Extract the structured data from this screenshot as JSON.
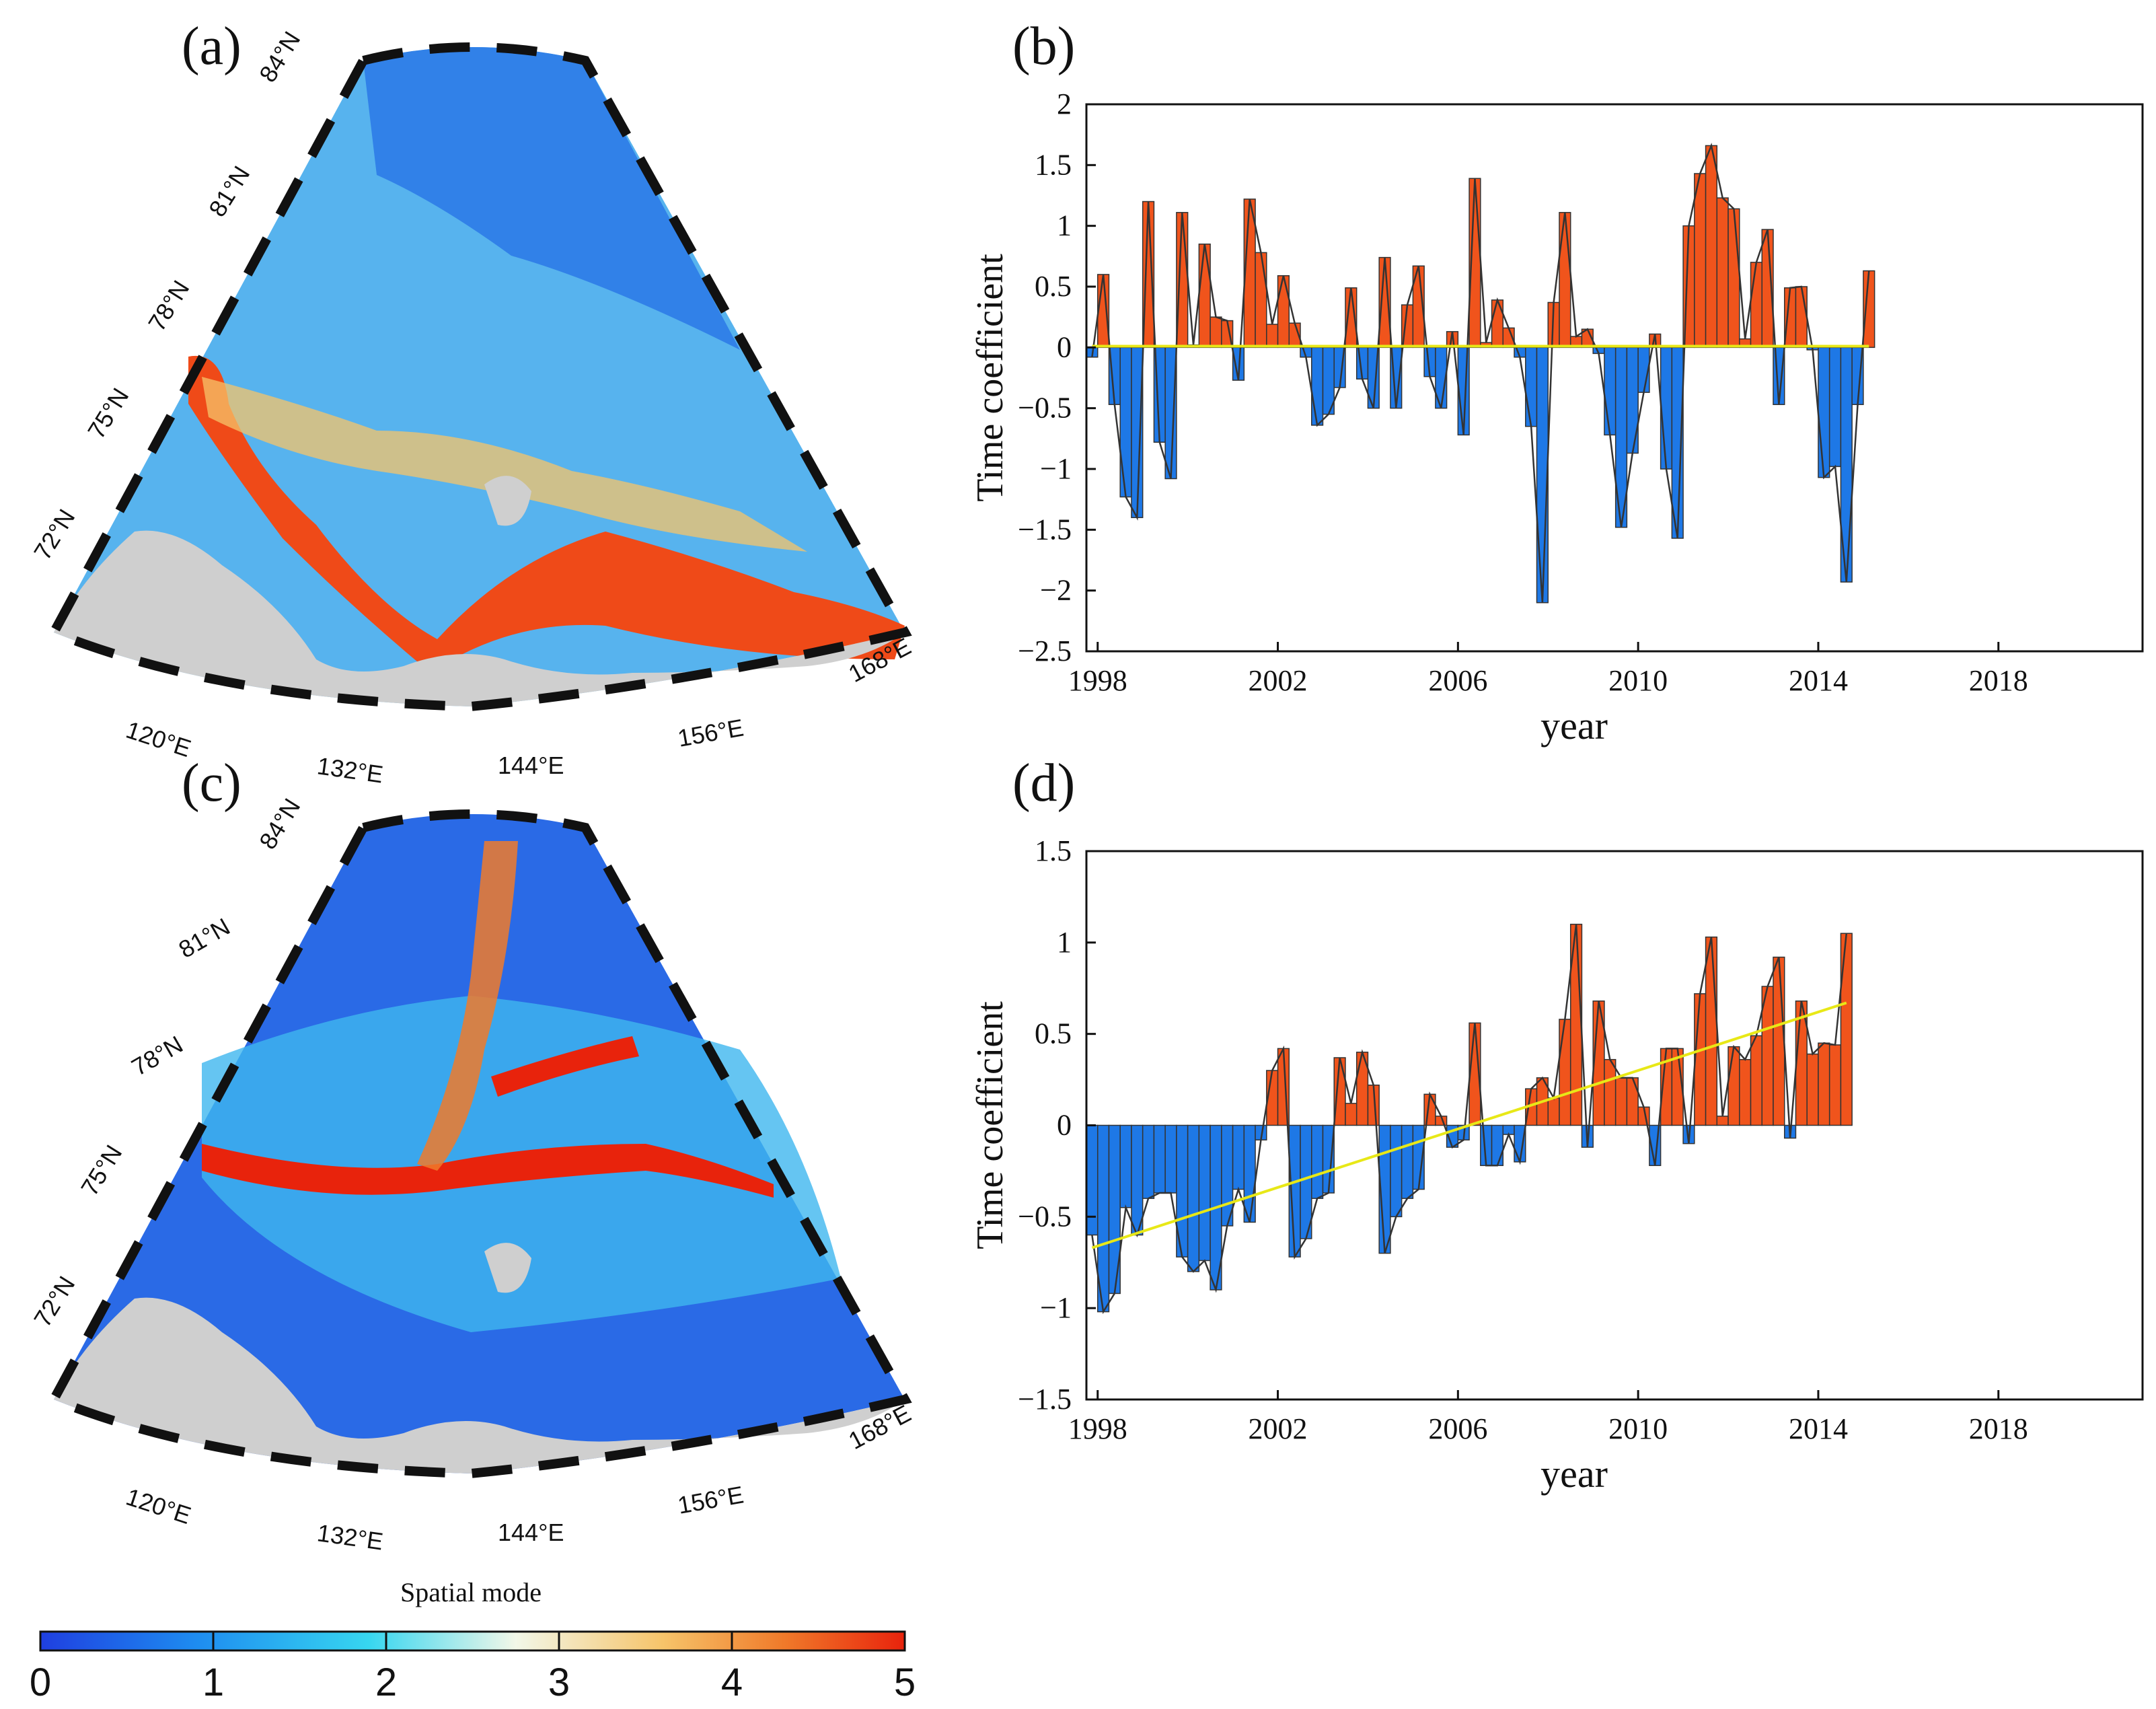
{
  "figure": {
    "panel_labels": [
      "(a)",
      "(b)",
      "(c)",
      "(d)"
    ],
    "colorbar": {
      "title": "Spatial mode",
      "ticks": [
        "0",
        "1",
        "2",
        "3",
        "4",
        "5"
      ],
      "range": [
        0,
        5
      ],
      "colors": [
        "#1f3fe0",
        "#1e8cf0",
        "#37d6f0",
        "#f2f7e8",
        "#f6c46a",
        "#f07a2a",
        "#e8230c"
      ]
    },
    "maps": [
      {
        "id": "a",
        "lat_labels": [
          "84°N",
          "81°N",
          "78°N",
          "75°N",
          "72°N"
        ],
        "lon_labels": [
          "120°E",
          "132°E",
          "144°E",
          "156°E",
          "168°E"
        ]
      },
      {
        "id": "c",
        "lat_labels": [
          "84°N",
          "81°N",
          "78°N",
          "75°N",
          "72°N"
        ],
        "lon_labels": [
          "120°E",
          "132°E",
          "144°E",
          "156°E",
          "168°E"
        ]
      }
    ],
    "colors": {
      "positive": "#f0541c",
      "negative": "#1e78e6",
      "line": "#333333",
      "trend": "#e8e817",
      "land": "#cfcfcf"
    }
  },
  "chart_data": [
    {
      "type": "bar",
      "panel": "b",
      "xlabel": "year",
      "ylabel": "Time coefficient",
      "xlim": [
        1997.75,
        2021.2
      ],
      "ylim": [
        -2.5,
        2
      ],
      "yticks": [
        "2",
        "1.5",
        "1",
        "0.5",
        "0",
        "−0.5",
        "−1",
        "−1.5",
        "−2",
        "−2.5"
      ],
      "ytick_values": [
        2,
        1.5,
        1,
        0.5,
        0,
        -0.5,
        -1,
        -1.5,
        -2,
        -2.5
      ],
      "xticks": [
        "1998",
        "2002",
        "2006",
        "2010",
        "2014",
        "2018"
      ],
      "xtick_values": [
        1998,
        2002,
        2006,
        2010,
        2014,
        2018
      ],
      "bar_start": 1997.75,
      "bar_step": 0.25,
      "values": [
        -0.08,
        0.6,
        -0.47,
        -1.23,
        -1.4,
        1.2,
        -0.78,
        -1.08,
        1.11,
        0.02,
        0.85,
        0.25,
        0.22,
        -0.27,
        1.22,
        0.78,
        0.19,
        0.59,
        0.2,
        -0.08,
        -0.64,
        -0.55,
        -0.33,
        0.49,
        -0.26,
        -0.5,
        0.74,
        -0.5,
        0.35,
        0.67,
        -0.24,
        -0.5,
        0.13,
        -0.72,
        1.39,
        0.04,
        0.39,
        0.16,
        -0.08,
        -0.65,
        -2.1,
        0.37,
        1.11,
        0.09,
        0.15,
        -0.05,
        -0.72,
        -1.48,
        -0.87,
        -0.37,
        0.11,
        -1.0,
        -1.57,
        1.0,
        1.43,
        1.66,
        1.23,
        1.14,
        0.07,
        0.7,
        0.97,
        -0.47,
        0.49,
        0.5,
        -0.02,
        -1.07,
        -0.98,
        -1.93,
        -0.47,
        0.63
      ],
      "trend": [
        0.01,
        0.01
      ]
    },
    {
      "type": "bar",
      "panel": "d",
      "xlabel": "year",
      "ylabel": "Time coefficient",
      "xlim": [
        1997.75,
        2021.2
      ],
      "ylim": [
        -1.5,
        1.5
      ],
      "yticks": [
        "1.5",
        "1",
        "0.5",
        "0",
        "−0.5",
        "−1",
        "−1.5"
      ],
      "ytick_values": [
        1.5,
        1,
        0.5,
        0,
        -0.5,
        -1,
        -1.5
      ],
      "xticks": [
        "1998",
        "2002",
        "2006",
        "2010",
        "2014",
        "2018"
      ],
      "xtick_values": [
        1998,
        2002,
        2006,
        2010,
        2014,
        2018
      ],
      "bar_start": 1997.75,
      "bar_step": 0.25,
      "values": [
        -0.6,
        -1.02,
        -0.92,
        -0.45,
        -0.6,
        -0.4,
        -0.37,
        -0.37,
        -0.72,
        -0.8,
        -0.74,
        -0.9,
        -0.55,
        -0.35,
        -0.53,
        -0.08,
        0.3,
        0.42,
        -0.72,
        -0.62,
        -0.4,
        -0.37,
        0.37,
        0.12,
        0.4,
        0.22,
        -0.7,
        -0.5,
        -0.4,
        -0.35,
        0.17,
        0.05,
        -0.12,
        -0.08,
        0.56,
        -0.22,
        -0.22,
        -0.05,
        -0.2,
        0.2,
        0.26,
        0.15,
        0.58,
        1.1,
        -0.12,
        0.68,
        0.36,
        0.26,
        0.26,
        0.1,
        -0.22,
        0.42,
        0.42,
        -0.1,
        0.72,
        1.03,
        0.05,
        0.43,
        0.36,
        0.49,
        0.76,
        0.92,
        -0.07,
        0.68,
        0.39,
        0.45,
        0.44,
        1.05
      ],
      "trend": [
        -0.67,
        0.67
      ]
    }
  ]
}
